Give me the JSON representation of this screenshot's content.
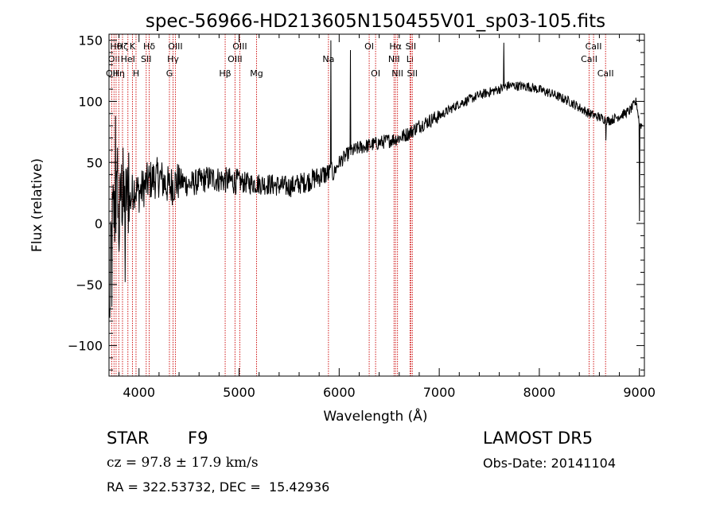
{
  "chart_data": {
    "type": "line",
    "title": "spec-56966-HD213605N150455V01_sp03-105.fits",
    "xlabel": "Wavelength (Å)",
    "ylabel": "Flux (relative)",
    "xlim": [
      3700,
      9050
    ],
    "ylim": [
      -125,
      155
    ],
    "x_ticks": [
      4000,
      5000,
      6000,
      7000,
      8000,
      9000
    ],
    "y_ticks": [
      -100,
      -50,
      0,
      50,
      100,
      150
    ],
    "grid": false,
    "line_color": "#000000",
    "marker_color": "#cc0000",
    "spectrum_nodes": [
      [
        3705,
        -80
      ],
      [
        3720,
        -20
      ],
      [
        3740,
        10
      ],
      [
        3760,
        5
      ],
      [
        3780,
        20
      ],
      [
        3800,
        -10
      ],
      [
        3820,
        30
      ],
      [
        3850,
        10
      ],
      [
        3880,
        25
      ],
      [
        3900,
        15
      ],
      [
        3950,
        30
      ],
      [
        4000,
        25
      ],
      [
        4100,
        35
      ],
      [
        4200,
        38
      ],
      [
        4300,
        30
      ],
      [
        4400,
        35
      ],
      [
        4500,
        32
      ],
      [
        4700,
        37
      ],
      [
        4900,
        35
      ],
      [
        5100,
        33
      ],
      [
        5300,
        32
      ],
      [
        5500,
        30
      ],
      [
        5700,
        35
      ],
      [
        5850,
        40
      ],
      [
        5950,
        42
      ],
      [
        6000,
        50
      ],
      [
        6100,
        58
      ],
      [
        6200,
        62
      ],
      [
        6400,
        66
      ],
      [
        6600,
        70
      ],
      [
        6700,
        74
      ],
      [
        6800,
        80
      ],
      [
        7000,
        88
      ],
      [
        7200,
        98
      ],
      [
        7400,
        105
      ],
      [
        7600,
        110
      ],
      [
        7700,
        113
      ],
      [
        7900,
        112
      ],
      [
        8100,
        107
      ],
      [
        8300,
        100
      ],
      [
        8500,
        90
      ],
      [
        8700,
        84
      ],
      [
        8900,
        92
      ],
      [
        8970,
        100
      ],
      [
        9000,
        82
      ],
      [
        9030,
        80
      ]
    ],
    "spikes": [
      [
        3728,
        -68
      ],
      [
        3765,
        88
      ],
      [
        3785,
        62
      ],
      [
        3840,
        62
      ],
      [
        3860,
        -48
      ],
      [
        3895,
        58
      ],
      [
        5915,
        150
      ],
      [
        6110,
        142
      ],
      [
        7645,
        148
      ],
      [
        8664,
        68
      ],
      [
        9000,
        2
      ]
    ],
    "markers": [
      {
        "x": 3728,
        "label": "OII",
        "row": 3
      },
      {
        "x": 3750,
        "label": "OII",
        "row": 2
      },
      {
        "x": 3771,
        "label": "Hθ",
        "row": 1
      },
      {
        "x": 3798,
        "label": "Hη",
        "row": 3
      },
      {
        "x": 3835,
        "label": "Hζ",
        "row": 1
      },
      {
        "x": 3889,
        "label": "HeI",
        "row": 2
      },
      {
        "x": 3934,
        "label": "K",
        "row": 1
      },
      {
        "x": 3970,
        "label": "H",
        "row": 3
      },
      {
        "x": 4102,
        "label": "Hδ",
        "row": 1
      },
      {
        "x": 4072,
        "label": "SII",
        "row": 2
      },
      {
        "x": 4304,
        "label": "G",
        "row": 3
      },
      {
        "x": 4340,
        "label": "Hγ",
        "row": 2
      },
      {
        "x": 4363,
        "label": "OIII",
        "row": 1
      },
      {
        "x": 4861,
        "label": "Hβ",
        "row": 3
      },
      {
        "x": 4959,
        "label": "OIII",
        "row": 2
      },
      {
        "x": 5007,
        "label": "OIII",
        "row": 1
      },
      {
        "x": 5175,
        "label": "Mg",
        "row": 3
      },
      {
        "x": 5893,
        "label": "Na",
        "row": 2
      },
      {
        "x": 6300,
        "label": "OI",
        "row": 1
      },
      {
        "x": 6364,
        "label": "OI",
        "row": 3
      },
      {
        "x": 6548,
        "label": "NII",
        "row": 2
      },
      {
        "x": 6563,
        "label": "Hα",
        "row": 1
      },
      {
        "x": 6583,
        "label": "NII",
        "row": 3
      },
      {
        "x": 6708,
        "label": "Li",
        "row": 2
      },
      {
        "x": 6716,
        "label": "SII",
        "row": 1
      },
      {
        "x": 6731,
        "label": "SII",
        "row": 3
      },
      {
        "x": 8498,
        "label": "CaII",
        "row": 2
      },
      {
        "x": 8542,
        "label": "CaII",
        "row": 1
      },
      {
        "x": 8662,
        "label": "CaII",
        "row": 3
      }
    ]
  },
  "info": {
    "object_class": "STAR",
    "subclass": "F9",
    "survey": "LAMOST DR5",
    "redshift": "cz = 97.8 ± 17.9 km/s",
    "obs_date": "Obs-Date: 20141104",
    "coords": "RA = 322.53732, DEC =  15.42936"
  }
}
